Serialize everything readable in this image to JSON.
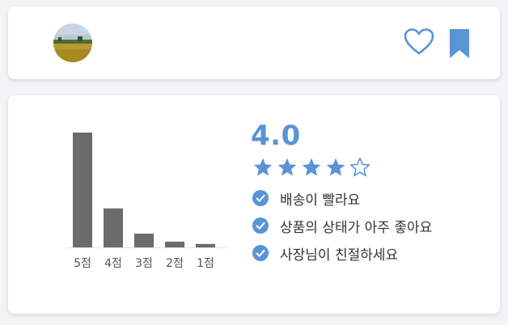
{
  "colors": {
    "accent": "#5a93d6",
    "bar": "#6b6b6b",
    "text": "#333333",
    "star_empty_stroke": "#5a93d6"
  },
  "icons": {
    "heart": "heart-icon",
    "bookmark": "bookmark-icon",
    "check": "check-circle-icon",
    "star_filled": "star-filled-icon",
    "star_empty": "star-outline-icon"
  },
  "review": {
    "score": "4.0",
    "rating": 4,
    "max_rating": 5,
    "feedback": [
      "배송이 빨라요",
      "상품의 상태가 아주 좋아요",
      "사장님이 친절하세요"
    ]
  },
  "chart_data": {
    "type": "bar",
    "categories": [
      "5점",
      "4점",
      "3점",
      "2점",
      "1점"
    ],
    "values": [
      100,
      34,
      12,
      5,
      3
    ],
    "ylim": [
      0,
      100
    ],
    "grid": false,
    "title": "",
    "xlabel": "",
    "ylabel": ""
  }
}
